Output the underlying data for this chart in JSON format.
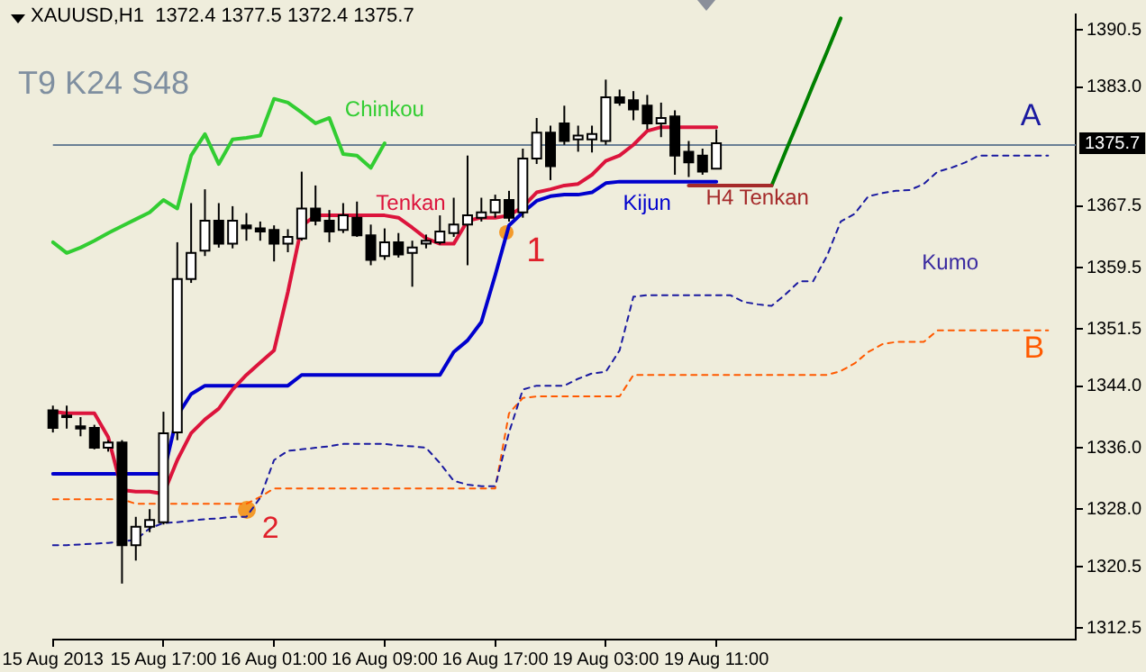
{
  "chart_data": {
    "type": "candlestick",
    "title": "XAUUSD,H1  1372.4 1377.5 1372.4 1375.7",
    "categories": [
      "15 Aug 2013",
      null,
      null,
      null,
      null,
      null,
      null,
      null,
      "15 Aug 17:00",
      null,
      null,
      null,
      null,
      null,
      null,
      null,
      "16 Aug 01:00",
      null,
      null,
      null,
      null,
      null,
      null,
      null,
      "16 Aug 09:00",
      null,
      null,
      null,
      null,
      null,
      null,
      null,
      "16 Aug 17:00",
      null,
      null,
      null,
      null,
      null,
      null,
      null,
      "19 Aug 03:00",
      null,
      null,
      null,
      null,
      null,
      null,
      null,
      "19 Aug 11:00",
      null,
      null,
      null,
      null,
      null,
      null,
      null,
      null,
      null,
      null,
      null,
      null,
      null,
      null,
      null,
      null,
      null,
      null,
      null,
      null,
      null,
      null,
      null,
      null,
      null,
      null
    ],
    "ohlc": [
      [
        1340.9,
        1341.5,
        1338.0,
        1338.6
      ],
      [
        1340.2,
        1341.5,
        1338.5,
        1340.0
      ],
      [
        1338.8,
        1340.0,
        1337.5,
        1338.5
      ],
      [
        1338.6,
        1339.0,
        1335.8,
        1336.0
      ],
      [
        1336.0,
        1337.0,
        1335.5,
        1336.7
      ],
      [
        1336.7,
        1337.0,
        1318.3,
        1323.3
      ],
      [
        1323.3,
        1327.0,
        1321.3,
        1325.7
      ],
      [
        1325.7,
        1328.0,
        1325.0,
        1326.6
      ],
      [
        1326.3,
        1340.7,
        1326.0,
        1337.9
      ],
      [
        1338.0,
        1362.8,
        1337.0,
        1358.0
      ],
      [
        1358.0,
        1367.9,
        1357.5,
        1361.4
      ],
      [
        1361.7,
        1369.7,
        1361.0,
        1365.6
      ],
      [
        1365.6,
        1367.9,
        1362.1,
        1362.6
      ],
      [
        1362.6,
        1367.5,
        1362.0,
        1365.6
      ],
      [
        1365.0,
        1366.6,
        1363.0,
        1364.6
      ],
      [
        1364.6,
        1365.5,
        1363.0,
        1364.2
      ],
      [
        1364.4,
        1365.0,
        1360.3,
        1362.6
      ],
      [
        1362.6,
        1364.5,
        1361.5,
        1363.5
      ],
      [
        1363.3,
        1372.0,
        1363.0,
        1367.2
      ],
      [
        1367.2,
        1370.2,
        1365.0,
        1365.6
      ],
      [
        1365.6,
        1367.0,
        1362.8,
        1364.2
      ],
      [
        1364.4,
        1367.9,
        1364.0,
        1366.3
      ],
      [
        1366.0,
        1368.1,
        1363.5,
        1363.7
      ],
      [
        1363.7,
        1365.1,
        1359.8,
        1360.5
      ],
      [
        1361.0,
        1364.6,
        1360.5,
        1362.8
      ],
      [
        1362.8,
        1364.0,
        1360.8,
        1361.2
      ],
      [
        1361.4,
        1363.0,
        1357.0,
        1362.1
      ],
      [
        1362.6,
        1363.8,
        1362.0,
        1363.0
      ],
      [
        1362.8,
        1366.3,
        1362.5,
        1364.2
      ],
      [
        1364.0,
        1368.6,
        1363.5,
        1365.1
      ],
      [
        1365.1,
        1374.1,
        1359.8,
        1366.3
      ],
      [
        1366.0,
        1368.6,
        1365.5,
        1366.7
      ],
      [
        1366.7,
        1369.0,
        1366.0,
        1368.3
      ],
      [
        1368.3,
        1369.5,
        1365.5,
        1366.0
      ],
      [
        1366.7,
        1375.0,
        1366.0,
        1373.7
      ],
      [
        1373.7,
        1379.0,
        1373.0,
        1377.1
      ],
      [
        1377.1,
        1378.0,
        1370.9,
        1372.7
      ],
      [
        1378.3,
        1380.6,
        1375.5,
        1376.0
      ],
      [
        1376.2,
        1378.0,
        1374.6,
        1376.7
      ],
      [
        1376.2,
        1378.0,
        1374.5,
        1376.9
      ],
      [
        1376.0,
        1384.0,
        1375.5,
        1381.7
      ],
      [
        1381.7,
        1382.7,
        1380.6,
        1381.0
      ],
      [
        1381.3,
        1382.5,
        1378.7,
        1380.1
      ],
      [
        1380.6,
        1382.0,
        1377.5,
        1378.3
      ],
      [
        1378.3,
        1381.0,
        1376.5,
        1379.0
      ],
      [
        1379.2,
        1380.0,
        1371.6,
        1374.1
      ],
      [
        1374.6,
        1376.0,
        1371.3,
        1373.2
      ],
      [
        1374.1,
        1375.0,
        1371.6,
        1372.0
      ],
      [
        1372.4,
        1377.5,
        1372.4,
        1375.7
      ],
      null,
      null,
      null,
      null,
      null,
      null,
      null,
      null,
      null,
      null,
      null,
      null,
      null,
      null,
      null,
      null,
      null,
      null,
      null,
      null,
      null,
      null,
      null,
      null,
      null,
      null
    ],
    "series": [
      {
        "name": "Tenkan",
        "type": "line",
        "color": "#dc143c",
        "values": [
          1340.7,
          1340.5,
          1340.5,
          1340.5,
          1337.4,
          1330.5,
          1330.3,
          1330.3,
          1330.0,
          1334.4,
          1337.9,
          1339.7,
          1341.1,
          1343.6,
          1345.5,
          1347.1,
          1348.7,
          1356.3,
          1364.9,
          1366.3,
          1366.3,
          1366.3,
          1366.3,
          1366.3,
          1366.3,
          1366.0,
          1364.7,
          1363.3,
          1362.6,
          1362.6,
          1365.6,
          1366.0,
          1366.0,
          1366.3,
          1367.4,
          1369.3,
          1369.7,
          1370.2,
          1370.4,
          1371.6,
          1373.4,
          1374.1,
          1375.5,
          1377.3,
          1377.8,
          1377.8,
          1377.8,
          1377.8,
          1377.8,
          null,
          null,
          null,
          null,
          null,
          null,
          null,
          null,
          null,
          null,
          null,
          null,
          null,
          null,
          null,
          null,
          null,
          null,
          null,
          null,
          null,
          null,
          null,
          null,
          null,
          null
        ]
      },
      {
        "name": "Kijun",
        "type": "line",
        "color": "#0000cd",
        "values": [
          1332.6,
          1332.6,
          1332.6,
          1332.6,
          1332.6,
          1332.6,
          1332.6,
          1332.6,
          1332.6,
          1340.2,
          1343.0,
          1344.1,
          1344.1,
          1344.1,
          1344.1,
          1344.1,
          1344.1,
          1344.1,
          1345.5,
          1345.5,
          1345.5,
          1345.5,
          1345.5,
          1345.5,
          1345.5,
          1345.5,
          1345.5,
          1345.5,
          1345.5,
          1348.5,
          1350.0,
          1352.4,
          1358.5,
          1365.0,
          1366.7,
          1368.2,
          1368.8,
          1369.0,
          1369.0,
          1369.3,
          1370.5,
          1370.7,
          1370.7,
          1370.7,
          1370.7,
          1370.7,
          1370.7,
          1370.7,
          1370.7,
          null,
          null,
          null,
          null,
          null,
          null,
          null,
          null,
          null,
          null,
          null,
          null,
          null,
          null,
          null,
          null,
          null,
          null,
          null,
          null,
          null,
          null,
          null,
          null,
          null,
          null
        ]
      },
      {
        "name": "Chinkou",
        "type": "line",
        "color": "#32cd32",
        "values": [
          1362.8,
          1361.4,
          1362.1,
          1363.0,
          1364.0,
          1364.9,
          1365.8,
          1366.7,
          1368.3,
          1367.2,
          1374.1,
          1376.9,
          1373.0,
          1376.2,
          1376.4,
          1376.7,
          1381.5,
          1381.0,
          1379.7,
          1378.3,
          1379.0,
          1374.3,
          1374.1,
          1372.5,
          1375.7,
          null,
          null,
          null,
          null,
          null,
          null,
          null,
          null,
          null,
          null,
          null,
          null,
          null,
          null,
          null,
          null,
          null,
          null,
          null,
          null,
          null,
          null,
          null,
          null,
          null,
          null,
          null,
          null,
          null,
          null,
          null,
          null,
          null,
          null,
          null,
          null,
          null,
          null,
          null,
          null,
          null,
          null,
          null,
          null,
          null,
          null,
          null,
          null,
          null,
          null
        ]
      },
      {
        "name": "A",
        "type": "line",
        "color": "#1a1aa0",
        "line_style": "dashed",
        "values": [
          1323.3,
          1323.3,
          1323.4,
          1323.5,
          1323.6,
          1323.8,
          1324.0,
          1325.5,
          1326.2,
          1326.3,
          1326.5,
          1326.7,
          1326.8,
          1327.0,
          1327.0,
          1329.5,
          1334.4,
          1335.6,
          1335.8,
          1336.0,
          1336.2,
          1336.5,
          1336.5,
          1336.5,
          1336.5,
          1336.3,
          1336.2,
          1336.0,
          1334.0,
          1331.7,
          1331.2,
          1331.0,
          1331.0,
          1338.0,
          1343.6,
          1344.1,
          1344.1,
          1344.1,
          1345.0,
          1345.7,
          1345.9,
          1348.7,
          1355.7,
          1355.9,
          1355.9,
          1355.9,
          1355.9,
          1355.9,
          1355.9,
          1355.9,
          1355.0,
          1354.7,
          1354.5,
          1356.0,
          1357.7,
          1357.7,
          1361.0,
          1365.5,
          1366.5,
          1368.8,
          1369.2,
          1369.5,
          1369.6,
          1370.4,
          1372.0,
          1372.5,
          1373.2,
          1374.1,
          1374.1,
          1374.1,
          1374.1,
          1374.1,
          1374.1,
          null,
          null
        ]
      },
      {
        "name": "B",
        "type": "line",
        "color": "#ff5a00",
        "line_style": "dashed",
        "values": [
          1329.3,
          1329.3,
          1329.3,
          1329.3,
          1329.3,
          1329.3,
          1328.7,
          1328.7,
          1328.7,
          1328.7,
          1328.7,
          1328.7,
          1328.7,
          1328.7,
          1328.7,
          1329.6,
          1330.7,
          1330.7,
          1330.7,
          1330.7,
          1330.7,
          1330.7,
          1330.7,
          1330.7,
          1330.7,
          1330.7,
          1330.7,
          1330.7,
          1330.7,
          1330.7,
          1330.7,
          1330.7,
          1330.7,
          1340.5,
          1342.5,
          1342.7,
          1342.7,
          1342.7,
          1342.7,
          1342.7,
          1342.7,
          1342.7,
          1345.5,
          1345.5,
          1345.5,
          1345.5,
          1345.5,
          1345.5,
          1345.5,
          1345.5,
          1345.5,
          1345.5,
          1345.5,
          1345.5,
          1345.5,
          1345.5,
          1345.5,
          1346.0,
          1347.0,
          1348.5,
          1349.5,
          1349.8,
          1349.8,
          1349.8,
          1351.3,
          1351.3,
          1351.3,
          1351.3,
          1351.3,
          1351.3,
          1351.3,
          1351.3,
          1351.3,
          null,
          null
        ]
      },
      {
        "name": "H4 Tenkan",
        "type": "line",
        "color": "#a52a2a",
        "values": [
          null,
          null,
          null,
          null,
          null,
          null,
          null,
          null,
          null,
          null,
          null,
          null,
          null,
          null,
          null,
          null,
          null,
          null,
          null,
          null,
          null,
          null,
          null,
          null,
          null,
          null,
          null,
          null,
          null,
          null,
          null,
          null,
          null,
          null,
          null,
          null,
          null,
          null,
          null,
          null,
          null,
          null,
          null,
          null,
          null,
          null,
          1370.2,
          1370.2,
          1370.2,
          1370.2,
          1370.2,
          1370.2,
          1370.2,
          null,
          null,
          null,
          null,
          null,
          null,
          null,
          null,
          null,
          null,
          null,
          null,
          null,
          null,
          null,
          null,
          null,
          null,
          null,
          null,
          null,
          null
        ]
      },
      {
        "type": "line",
        "color": "#008000",
        "values": [
          null,
          null,
          null,
          null,
          null,
          null,
          null,
          null,
          null,
          null,
          null,
          null,
          null,
          null,
          null,
          null,
          null,
          null,
          null,
          null,
          null,
          null,
          null,
          null,
          null,
          null,
          null,
          null,
          null,
          null,
          null,
          null,
          null,
          null,
          null,
          null,
          null,
          null,
          null,
          null,
          null,
          null,
          null,
          null,
          null,
          null,
          null,
          null,
          null,
          null,
          null,
          null,
          1370.2,
          1374.6,
          1378.9,
          1383.3,
          1387.6,
          1392.0,
          null,
          null,
          null,
          null,
          null,
          null,
          null,
          null,
          null,
          null,
          null,
          null,
          null,
          null,
          null,
          null,
          null
        ]
      }
    ],
    "ylim": [
      1311,
      1392.5
    ],
    "yticks": [
      1312.5,
      1320.5,
      {
        "value": 1328,
        "label": "1328.0"
      },
      {
        "value": 1336,
        "label": "1336.0"
      },
      {
        "value": 1344,
        "label": "1344.0"
      },
      1351.5,
      1359.5,
      1367.5,
      {
        "value": 1383,
        "label": "1383.0"
      },
      1390.5
    ],
    "ref_lines": [
      {
        "axis": "y",
        "value": 1375.7,
        "label": "1375.7",
        "color": "#6a7f95"
      }
    ],
    "annotations": [
      "T9 K24 S48",
      "Kumo",
      "1",
      "2"
    ]
  }
}
